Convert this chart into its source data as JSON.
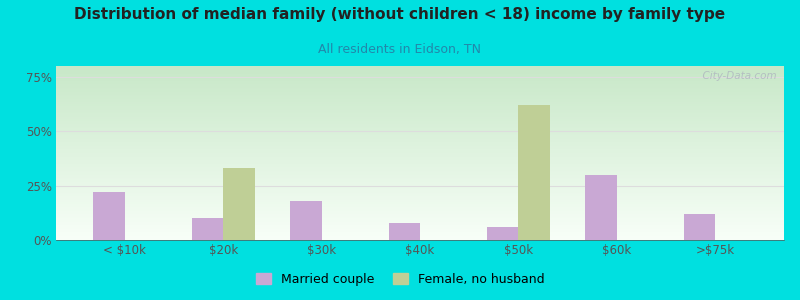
{
  "title": "Distribution of median family (without children < 18) income by family type",
  "subtitle": "All residents in Eidson, TN",
  "categories": [
    "< $10k",
    "$20k",
    "$30k",
    "$40k",
    "$50k",
    "$60k",
    ">$75k"
  ],
  "married_couple": [
    22,
    10,
    18,
    8,
    6,
    30,
    12
  ],
  "female_no_husband": [
    0,
    33,
    0,
    0,
    62,
    0,
    0
  ],
  "married_color": "#c9a8d4",
  "female_color": "#bfcf96",
  "background_outer": "#00e0e0",
  "background_plot_topleft": "#c8e8c8",
  "background_plot_bottomright": "#f8fff8",
  "title_color": "#222222",
  "subtitle_color": "#2288aa",
  "axis_color": "#555555",
  "grid_color": "#dddddd",
  "yticks": [
    0,
    25,
    50,
    75
  ],
  "ytick_labels": [
    "0%",
    "25%",
    "50%",
    "75%"
  ],
  "ylim": [
    0,
    80
  ],
  "bar_width": 0.32,
  "legend_labels": [
    "Married couple",
    "Female, no husband"
  ],
  "watermark": "  City-Data.com"
}
